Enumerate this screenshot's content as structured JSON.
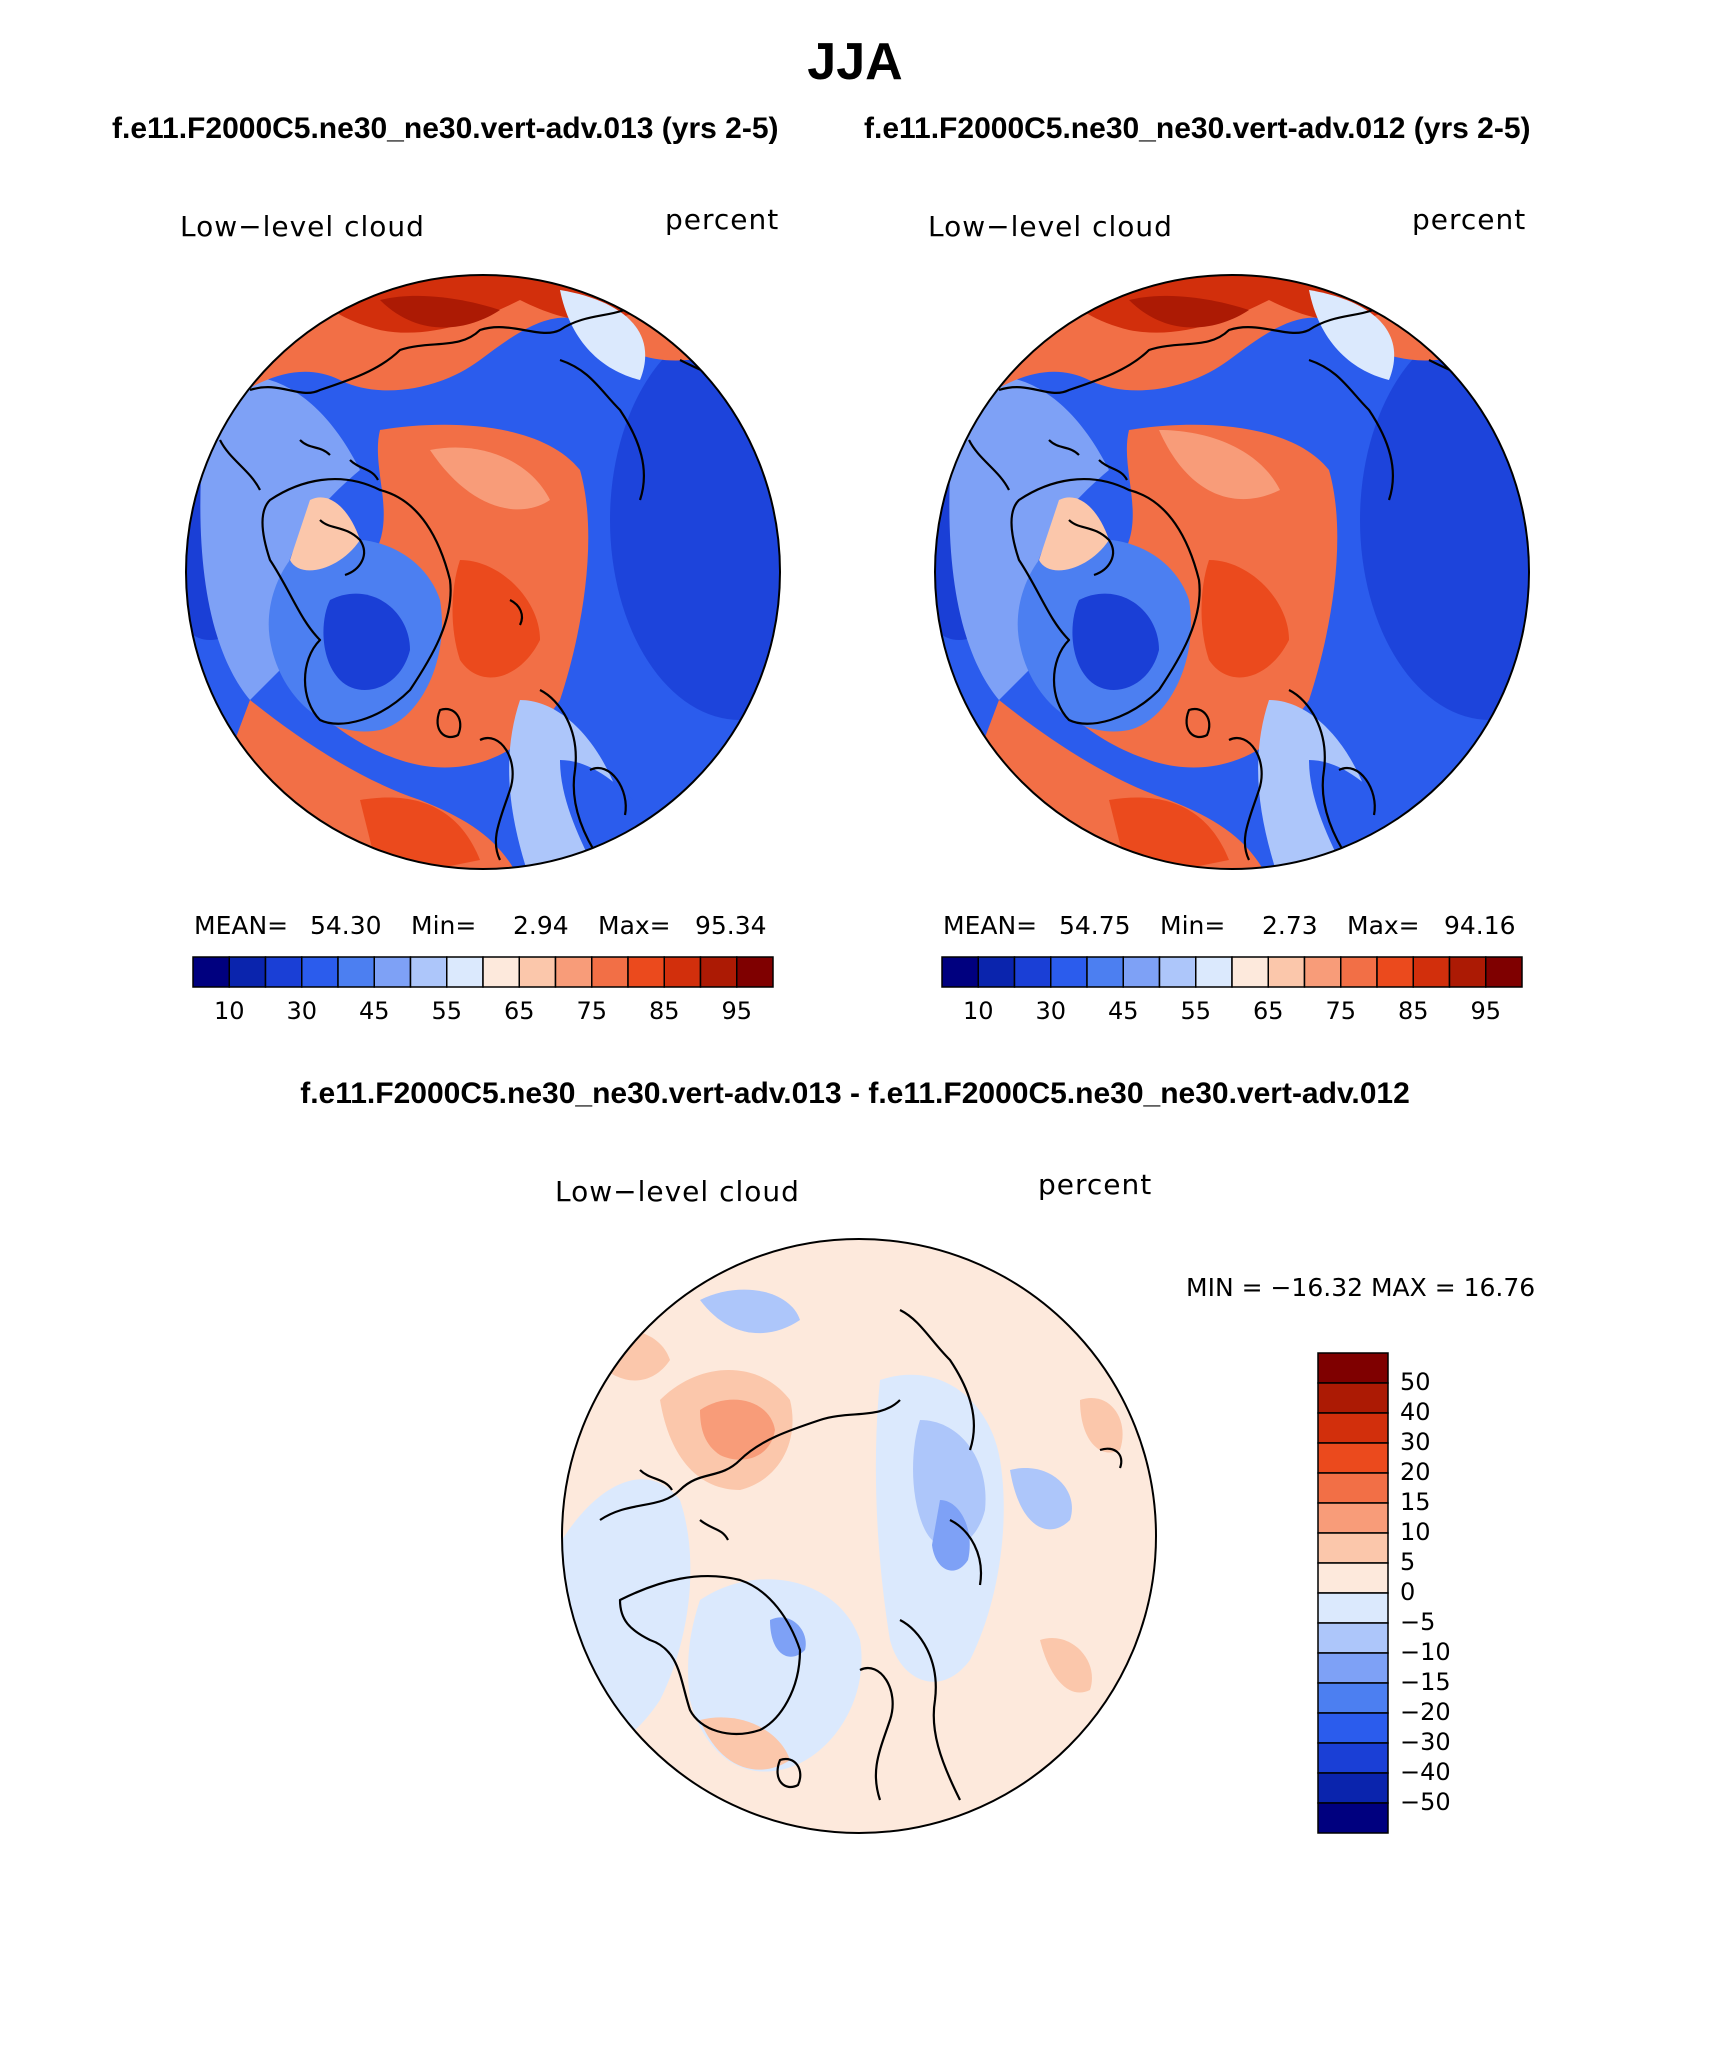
{
  "title": "JJA",
  "subtitles": [
    "f.e11.F2000C5.ne30_ne30.vert-adv.013 (yrs 2-5)",
    "f.e11.F2000C5.ne30_ne30.vert-adv.012 (yrs 2-5)"
  ],
  "diff_title": "f.e11.F2000C5.ne30_ne30.vert-adv.013 - f.e11.F2000C5.ne30_ne30.vert-adv.012",
  "panels": [
    {
      "variable": "Low−level cloud",
      "units": "percent",
      "stats": {
        "mean_label": "MEAN=",
        "mean": "54.30",
        "min_label": "Min=",
        "min": "2.94",
        "max_label": "Max=",
        "max": "95.34"
      }
    },
    {
      "variable": "Low−level cloud",
      "units": "percent",
      "stats": {
        "mean_label": "MEAN=",
        "mean": "54.75",
        "min_label": "Min=",
        "min": "2.73",
        "max_label": "Max=",
        "max": "94.16"
      }
    }
  ],
  "diff_panel": {
    "variable": "Low−level cloud",
    "units": "percent",
    "stats_text": "MIN = −16.32 MAX =   16.76"
  },
  "colorbar_main": {
    "colors": [
      "#00007f",
      "#0a24ad",
      "#1a3fd6",
      "#2b5ced",
      "#4c7ff1",
      "#7ea1f6",
      "#adc6fa",
      "#dbe9fd",
      "#fde9dc",
      "#fbc7ab",
      "#f89c79",
      "#f26f46",
      "#eb4a1d",
      "#d22f0c",
      "#ac1a04",
      "#7f0000"
    ],
    "labels": [
      "10",
      "30",
      "45",
      "55",
      "65",
      "75",
      "85",
      "95"
    ]
  },
  "colorbar_diff": {
    "colors": [
      "#7f0000",
      "#ac1a04",
      "#d22f0c",
      "#eb4a1d",
      "#f26f46",
      "#f89c79",
      "#fbc7ab",
      "#fde9dc",
      "#dbe9fd",
      "#adc6fa",
      "#7ea1f6",
      "#4c7ff1",
      "#2b5ced",
      "#1a3fd6",
      "#0a24ad",
      "#00007f"
    ],
    "labels": [
      "50",
      "40",
      "30",
      "20",
      "15",
      "10",
      "5",
      "0",
      "−5",
      "−10",
      "−15",
      "−20",
      "−30",
      "−40",
      "−50"
    ]
  },
  "colors": {
    "deep_blue": "#1a3fd6",
    "mid_blue": "#2b5ced",
    "light_blue": "#7ea1f6",
    "pale_blue": "#dbe9fd",
    "pale_orange": "#fde9dc",
    "orange": "#f26f46",
    "red_orange": "#eb4a1d",
    "dark_red": "#ac1a04"
  }
}
